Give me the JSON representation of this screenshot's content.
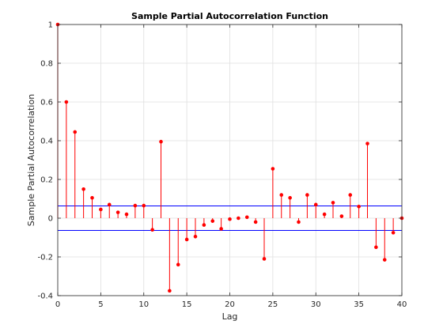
{
  "chart_data": {
    "type": "stem",
    "title": "Sample Partial Autocorrelation Function",
    "xlabel": "Lag",
    "ylabel": "Sample Partial Autocorrelation",
    "xlim": [
      0,
      40
    ],
    "ylim": [
      -0.4,
      1
    ],
    "xticks": [
      "0",
      "5",
      "10",
      "15",
      "20",
      "25",
      "30",
      "35",
      "40"
    ],
    "yticks": [
      "-0.4",
      "-0.2",
      "0",
      "0.2",
      "0.4",
      "0.6",
      "0.8",
      "1"
    ],
    "grid": true,
    "x": [
      0,
      1,
      2,
      3,
      4,
      5,
      6,
      7,
      8,
      9,
      10,
      11,
      12,
      13,
      14,
      15,
      16,
      17,
      18,
      19,
      20,
      21,
      22,
      23,
      24,
      25,
      26,
      27,
      28,
      29,
      30,
      31,
      32,
      33,
      34,
      35,
      36,
      37,
      38,
      39,
      40
    ],
    "values": [
      1,
      0.6,
      0.445,
      0.15,
      0.105,
      0.045,
      0.07,
      0.03,
      0.02,
      0.065,
      0.065,
      -0.06,
      0.395,
      -0.375,
      -0.24,
      -0.11,
      -0.095,
      -0.035,
      -0.015,
      -0.055,
      -0.005,
      0.0,
      0.005,
      -0.02,
      -0.21,
      0.255,
      0.12,
      0.105,
      -0.02,
      0.12,
      0.07,
      0.02,
      0.08,
      0.01,
      0.12,
      0.06,
      0.385,
      -0.15,
      -0.215,
      -0.075,
      0.0
    ],
    "confidence_bounds": [
      0.0632,
      -0.0632
    ],
    "colors": {
      "stem": "#ff0000",
      "marker": "#ff0000",
      "bounds": "#0000ff",
      "axis": "#262626",
      "grid": "#dfdfdf"
    }
  }
}
